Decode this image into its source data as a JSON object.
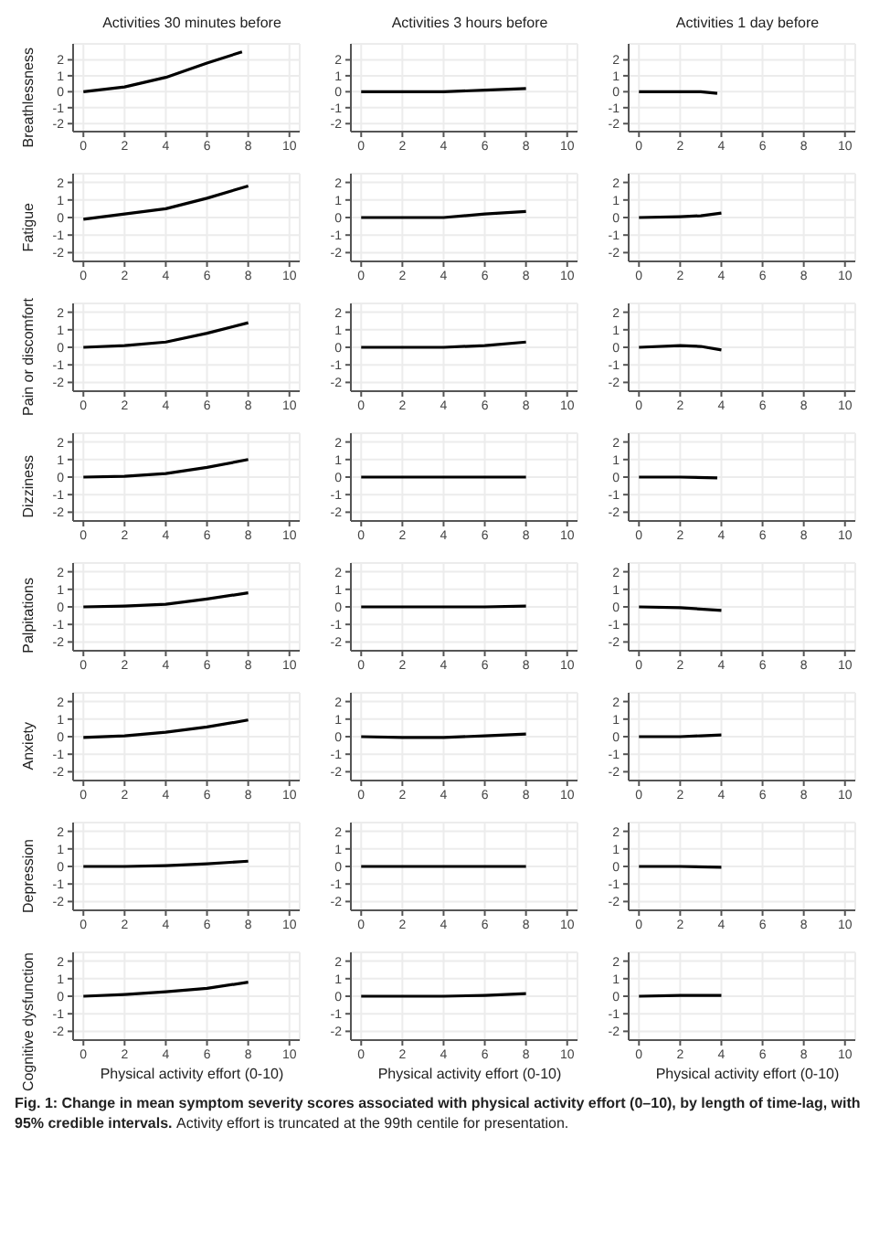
{
  "chart_data": [
    {
      "type": "line",
      "title": "Activities 30 minutes before",
      "ylabel": "Breathlessness",
      "x": [
        0,
        2,
        4,
        6,
        7.7
      ],
      "values": [
        0,
        0.3,
        0.9,
        1.8,
        2.5
      ],
      "color": "#000000",
      "xlim": [
        -0.5,
        10.5
      ],
      "xticks": [
        0,
        2,
        4,
        6,
        8,
        10
      ],
      "ylim": [
        -2.5,
        3
      ],
      "yticks": [
        -2,
        -1,
        0,
        1,
        2
      ],
      "grid": true
    },
    {
      "type": "line",
      "title": "Activities 3 hours before",
      "x": [
        0,
        2,
        4,
        6,
        8
      ],
      "values": [
        0,
        0,
        0,
        0.1,
        0.2
      ],
      "color": "#000000",
      "xlim": [
        -0.5,
        10.5
      ],
      "xticks": [
        0,
        2,
        4,
        6,
        8,
        10
      ],
      "ylim": [
        -2.5,
        3
      ],
      "yticks": [
        -2,
        -1,
        0,
        1,
        2
      ],
      "grid": true
    },
    {
      "type": "line",
      "title": "Activities 1 day before",
      "x": [
        0,
        2,
        3,
        3.8
      ],
      "values": [
        0,
        0,
        0,
        -0.1
      ],
      "color": "#000000",
      "xlim": [
        -0.5,
        10.5
      ],
      "xticks": [
        0,
        2,
        4,
        6,
        8,
        10
      ],
      "ylim": [
        -2.5,
        3
      ],
      "yticks": [
        -2,
        -1,
        0,
        1,
        2
      ],
      "grid": true
    },
    {
      "type": "line",
      "ylabel": "Fatigue",
      "x": [
        0,
        2,
        4,
        6,
        8
      ],
      "values": [
        -0.1,
        0.2,
        0.5,
        1.1,
        1.8
      ],
      "color": "#000000",
      "xlim": [
        -0.5,
        10.5
      ],
      "xticks": [
        0,
        2,
        4,
        6,
        8,
        10
      ],
      "ylim": [
        -2.5,
        2.5
      ],
      "yticks": [
        -2,
        -1,
        0,
        1,
        2
      ],
      "grid": true
    },
    {
      "type": "line",
      "x": [
        0,
        2,
        4,
        6,
        8
      ],
      "values": [
        0,
        0,
        0,
        0.2,
        0.35
      ],
      "color": "#000000",
      "xlim": [
        -0.5,
        10.5
      ],
      "xticks": [
        0,
        2,
        4,
        6,
        8,
        10
      ],
      "ylim": [
        -2.5,
        2.5
      ],
      "yticks": [
        -2,
        -1,
        0,
        1,
        2
      ],
      "grid": true
    },
    {
      "type": "line",
      "x": [
        0,
        2,
        3,
        4
      ],
      "values": [
        0,
        0.05,
        0.1,
        0.25
      ],
      "color": "#000000",
      "xlim": [
        -0.5,
        10.5
      ],
      "xticks": [
        0,
        2,
        4,
        6,
        8,
        10
      ],
      "ylim": [
        -2.5,
        2.5
      ],
      "yticks": [
        -2,
        -1,
        0,
        1,
        2
      ],
      "grid": true
    },
    {
      "type": "line",
      "ylabel": "Pain or discomfort",
      "x": [
        0,
        2,
        4,
        6,
        8
      ],
      "values": [
        0,
        0.1,
        0.3,
        0.8,
        1.4
      ],
      "color": "#000000",
      "xlim": [
        -0.5,
        10.5
      ],
      "xticks": [
        0,
        2,
        4,
        6,
        8,
        10
      ],
      "ylim": [
        -2.5,
        2.5
      ],
      "yticks": [
        -2,
        -1,
        0,
        1,
        2
      ],
      "grid": true
    },
    {
      "type": "line",
      "x": [
        0,
        2,
        4,
        6,
        8
      ],
      "values": [
        0,
        0,
        0,
        0.1,
        0.3
      ],
      "color": "#000000",
      "xlim": [
        -0.5,
        10.5
      ],
      "xticks": [
        0,
        2,
        4,
        6,
        8,
        10
      ],
      "ylim": [
        -2.5,
        2.5
      ],
      "yticks": [
        -2,
        -1,
        0,
        1,
        2
      ],
      "grid": true
    },
    {
      "type": "line",
      "x": [
        0,
        2,
        3,
        4
      ],
      "values": [
        0,
        0.1,
        0.05,
        -0.15
      ],
      "color": "#000000",
      "xlim": [
        -0.5,
        10.5
      ],
      "xticks": [
        0,
        2,
        4,
        6,
        8,
        10
      ],
      "ylim": [
        -2.5,
        2.5
      ],
      "yticks": [
        -2,
        -1,
        0,
        1,
        2
      ],
      "grid": true
    },
    {
      "type": "line",
      "ylabel": "Dizziness",
      "x": [
        0,
        2,
        4,
        6,
        8
      ],
      "values": [
        0,
        0.05,
        0.2,
        0.55,
        1
      ],
      "color": "#000000",
      "xlim": [
        -0.5,
        10.5
      ],
      "xticks": [
        0,
        2,
        4,
        6,
        8,
        10
      ],
      "ylim": [
        -2.5,
        2.5
      ],
      "yticks": [
        -2,
        -1,
        0,
        1,
        2
      ],
      "grid": true
    },
    {
      "type": "line",
      "x": [
        0,
        2,
        4,
        6,
        8
      ],
      "values": [
        0,
        0,
        0,
        0,
        0
      ],
      "color": "#000000",
      "xlim": [
        -0.5,
        10.5
      ],
      "xticks": [
        0,
        2,
        4,
        6,
        8,
        10
      ],
      "ylim": [
        -2.5,
        2.5
      ],
      "yticks": [
        -2,
        -1,
        0,
        1,
        2
      ],
      "grid": true
    },
    {
      "type": "line",
      "x": [
        0,
        2,
        3.8
      ],
      "values": [
        0,
        0,
        -0.05
      ],
      "color": "#000000",
      "xlim": [
        -0.5,
        10.5
      ],
      "xticks": [
        0,
        2,
        4,
        6,
        8,
        10
      ],
      "ylim": [
        -2.5,
        2.5
      ],
      "yticks": [
        -2,
        -1,
        0,
        1,
        2
      ],
      "grid": true
    },
    {
      "type": "line",
      "ylabel": "Palpitations",
      "x": [
        0,
        2,
        4,
        6,
        8
      ],
      "values": [
        0,
        0.05,
        0.15,
        0.45,
        0.8
      ],
      "color": "#000000",
      "xlim": [
        -0.5,
        10.5
      ],
      "xticks": [
        0,
        2,
        4,
        6,
        8,
        10
      ],
      "ylim": [
        -2.5,
        2.5
      ],
      "yticks": [
        -2,
        -1,
        0,
        1,
        2
      ],
      "grid": true
    },
    {
      "type": "line",
      "x": [
        0,
        2,
        4,
        6,
        8
      ],
      "values": [
        0,
        0,
        0,
        0,
        0.05
      ],
      "color": "#000000",
      "xlim": [
        -0.5,
        10.5
      ],
      "xticks": [
        0,
        2,
        4,
        6,
        8,
        10
      ],
      "ylim": [
        -2.5,
        2.5
      ],
      "yticks": [
        -2,
        -1,
        0,
        1,
        2
      ],
      "grid": true
    },
    {
      "type": "line",
      "x": [
        0,
        2,
        4
      ],
      "values": [
        0,
        -0.05,
        -0.2
      ],
      "color": "#000000",
      "xlim": [
        -0.5,
        10.5
      ],
      "xticks": [
        0,
        2,
        4,
        6,
        8,
        10
      ],
      "ylim": [
        -2.5,
        2.5
      ],
      "yticks": [
        -2,
        -1,
        0,
        1,
        2
      ],
      "grid": true
    },
    {
      "type": "line",
      "ylabel": "Anxiety",
      "x": [
        0,
        2,
        4,
        6,
        8
      ],
      "values": [
        -0.05,
        0.05,
        0.25,
        0.55,
        0.95
      ],
      "color": "#000000",
      "xlim": [
        -0.5,
        10.5
      ],
      "xticks": [
        0,
        2,
        4,
        6,
        8,
        10
      ],
      "ylim": [
        -2.5,
        2.5
      ],
      "yticks": [
        -2,
        -1,
        0,
        1,
        2
      ],
      "grid": true
    },
    {
      "type": "line",
      "x": [
        0,
        2,
        4,
        6,
        8
      ],
      "values": [
        0,
        -0.05,
        -0.05,
        0.05,
        0.15
      ],
      "color": "#000000",
      "xlim": [
        -0.5,
        10.5
      ],
      "xticks": [
        0,
        2,
        4,
        6,
        8,
        10
      ],
      "ylim": [
        -2.5,
        2.5
      ],
      "yticks": [
        -2,
        -1,
        0,
        1,
        2
      ],
      "grid": true
    },
    {
      "type": "line",
      "x": [
        0,
        2,
        3,
        4
      ],
      "values": [
        0,
        0,
        0.05,
        0.1
      ],
      "color": "#000000",
      "xlim": [
        -0.5,
        10.5
      ],
      "xticks": [
        0,
        2,
        4,
        6,
        8,
        10
      ],
      "ylim": [
        -2.5,
        2.5
      ],
      "yticks": [
        -2,
        -1,
        0,
        1,
        2
      ],
      "grid": true
    },
    {
      "type": "line",
      "ylabel": "Depression",
      "x": [
        0,
        2,
        4,
        6,
        8
      ],
      "values": [
        0,
        0,
        0.05,
        0.15,
        0.3
      ],
      "color": "#000000",
      "xlim": [
        -0.5,
        10.5
      ],
      "xticks": [
        0,
        2,
        4,
        6,
        8,
        10
      ],
      "ylim": [
        -2.5,
        2.5
      ],
      "yticks": [
        -2,
        -1,
        0,
        1,
        2
      ],
      "grid": true
    },
    {
      "type": "line",
      "x": [
        0,
        2,
        4,
        6,
        8
      ],
      "values": [
        0,
        0,
        0,
        0,
        0
      ],
      "color": "#000000",
      "xlim": [
        -0.5,
        10.5
      ],
      "xticks": [
        0,
        2,
        4,
        6,
        8,
        10
      ],
      "ylim": [
        -2.5,
        2.5
      ],
      "yticks": [
        -2,
        -1,
        0,
        1,
        2
      ],
      "grid": true
    },
    {
      "type": "line",
      "x": [
        0,
        2,
        4
      ],
      "values": [
        0,
        0,
        -0.05
      ],
      "color": "#000000",
      "xlim": [
        -0.5,
        10.5
      ],
      "xticks": [
        0,
        2,
        4,
        6,
        8,
        10
      ],
      "ylim": [
        -2.5,
        2.5
      ],
      "yticks": [
        -2,
        -1,
        0,
        1,
        2
      ],
      "grid": true
    },
    {
      "type": "line",
      "ylabel": "Cognitive dysfunction",
      "xlabel": "Physical activity effort (0-10)",
      "x": [
        0,
        2,
        4,
        6,
        8
      ],
      "values": [
        0,
        0.1,
        0.25,
        0.45,
        0.8
      ],
      "color": "#000000",
      "xlim": [
        -0.5,
        10.5
      ],
      "xticks": [
        0,
        2,
        4,
        6,
        8,
        10
      ],
      "ylim": [
        -2.5,
        2.5
      ],
      "yticks": [
        -2,
        -1,
        0,
        1,
        2
      ],
      "grid": true
    },
    {
      "type": "line",
      "xlabel": "Physical activity effort (0-10)",
      "x": [
        0,
        2,
        4,
        6,
        8
      ],
      "values": [
        0,
        0,
        0,
        0.05,
        0.15
      ],
      "color": "#000000",
      "xlim": [
        -0.5,
        10.5
      ],
      "xticks": [
        0,
        2,
        4,
        6,
        8,
        10
      ],
      "ylim": [
        -2.5,
        2.5
      ],
      "yticks": [
        -2,
        -1,
        0,
        1,
        2
      ],
      "grid": true
    },
    {
      "type": "line",
      "xlabel": "Physical activity effort (0-10)",
      "x": [
        0,
        2,
        4
      ],
      "values": [
        0,
        0.05,
        0.05
      ],
      "color": "#000000",
      "xlim": [
        -0.5,
        10.5
      ],
      "xticks": [
        0,
        2,
        4,
        6,
        8,
        10
      ],
      "ylim": [
        -2.5,
        2.5
      ],
      "yticks": [
        -2,
        -1,
        0,
        1,
        2
      ],
      "grid": true,
      "annotations": [
        "Fig. 1: Change in mean symptom severity scores associated with physical activity effort (0–10), by length of time-lag, with 95% credible intervals.",
        "Activity effort is truncated at the 99th centile for presentation."
      ]
    }
  ]
}
